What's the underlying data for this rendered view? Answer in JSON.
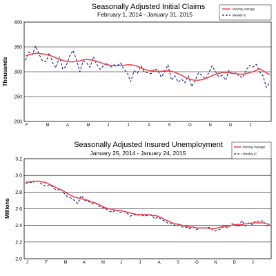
{
  "colors": {
    "moving_average": "#f2434b",
    "weekly": "#1a1a8c",
    "grid": "#000000",
    "background": "#ffffff"
  },
  "chart_data": [
    {
      "type": "line",
      "title": "Seasonally Adjusted Initial Claims",
      "subtitle": "February 1, 2014  -  January 31, 2015",
      "ylabel": "Thousands",
      "ylim": [
        200,
        400
      ],
      "yticks": [
        200,
        250,
        300,
        350,
        400
      ],
      "x_tick_labels": [
        "F",
        "M",
        "A",
        "M",
        "J",
        "J",
        "A",
        "S",
        "O",
        "N",
        "D",
        "J"
      ],
      "grid": "horizontal",
      "legend": "top-right",
      "legend_entries": [
        "Moving Average",
        "Weekly IC"
      ],
      "series": [
        {
          "name": "Moving Average",
          "values": [
            332,
            334,
            336,
            337,
            337,
            336,
            335,
            333,
            331,
            328,
            325,
            323,
            321,
            320,
            320,
            321,
            322,
            324,
            325,
            324,
            323,
            321,
            319,
            316,
            314,
            313,
            312,
            312,
            313,
            313,
            314,
            314,
            313,
            311,
            308,
            305,
            303,
            302,
            301,
            301,
            301,
            302,
            302,
            301,
            299,
            296,
            293,
            289,
            286,
            284,
            283,
            283,
            284,
            286,
            289,
            292,
            295,
            297,
            298,
            298,
            298,
            297,
            296,
            295,
            295,
            296,
            298,
            300,
            303,
            306,
            302,
            298,
            294
          ]
        },
        {
          "name": "Weekly IC",
          "values": [
            323,
            340,
            334,
            352,
            335,
            322,
            320,
            338,
            318,
            308,
            330,
            305,
            312,
            332,
            343,
            325,
            300,
            322,
            318,
            309,
            330,
            315,
            305,
            312,
            318,
            309,
            314,
            312,
            318,
            305,
            298,
            280,
            302,
            297,
            312,
            300,
            298,
            296,
            306,
            303,
            289,
            300,
            314,
            283,
            292,
            279,
            285,
            278,
            292,
            270,
            283,
            298,
            293,
            285,
            298,
            312,
            300,
            290,
            293,
            283,
            303,
            295,
            298,
            291,
            288,
            303,
            313,
            309,
            315,
            300,
            292,
            268,
            280
          ]
        }
      ]
    },
    {
      "type": "line",
      "title": "Seasonally Adjusted Insured Unemployment",
      "subtitle": "January 25, 2014  -  January 24, 2015",
      "ylabel": "Millions",
      "ylim": [
        2.0,
        3.2
      ],
      "yticks": [
        2.0,
        2.2,
        2.4,
        2.6,
        2.8,
        3.0,
        3.2
      ],
      "x_tick_labels": [
        "J",
        "F",
        "M",
        "A",
        "M",
        "J",
        "J",
        "A",
        "S",
        "O",
        "N",
        "D",
        "J"
      ],
      "grid": "horizontal",
      "legend": "top-right",
      "legend_entries": [
        "Moving Average",
        "Weekly IC"
      ],
      "series": [
        {
          "name": "Moving Average",
          "values": [
            2.92,
            2.92,
            2.93,
            2.93,
            2.93,
            2.92,
            2.91,
            2.89,
            2.87,
            2.85,
            2.83,
            2.81,
            2.78,
            2.76,
            2.74,
            2.73,
            2.72,
            2.71,
            2.7,
            2.68,
            2.67,
            2.65,
            2.63,
            2.61,
            2.6,
            2.59,
            2.58,
            2.58,
            2.57,
            2.56,
            2.55,
            2.54,
            2.53,
            2.53,
            2.53,
            2.53,
            2.52,
            2.52,
            2.51,
            2.49,
            2.47,
            2.45,
            2.43,
            2.42,
            2.41,
            2.4,
            2.39,
            2.38,
            2.38,
            2.37,
            2.37,
            2.37,
            2.37,
            2.36,
            2.36,
            2.37,
            2.38,
            2.39,
            2.39,
            2.4,
            2.41,
            2.41,
            2.41,
            2.42,
            2.42,
            2.43,
            2.43,
            2.43,
            2.43,
            2.42,
            2.41
          ]
        },
        {
          "name": "Weekly IC",
          "values": [
            2.9,
            2.92,
            2.91,
            2.94,
            2.92,
            2.88,
            2.87,
            2.89,
            2.85,
            2.82,
            2.84,
            2.79,
            2.74,
            2.73,
            2.7,
            2.66,
            2.76,
            2.7,
            2.69,
            2.66,
            2.67,
            2.63,
            2.62,
            2.6,
            2.57,
            2.56,
            2.59,
            2.55,
            2.57,
            2.55,
            2.51,
            2.53,
            2.52,
            2.53,
            2.51,
            2.52,
            2.53,
            2.48,
            2.5,
            2.47,
            2.45,
            2.42,
            2.42,
            2.4,
            2.41,
            2.38,
            2.38,
            2.36,
            2.38,
            2.35,
            2.37,
            2.36,
            2.38,
            2.37,
            2.33,
            2.34,
            2.36,
            2.39,
            2.37,
            2.42,
            2.41,
            2.38,
            2.46,
            2.39,
            2.43,
            2.41,
            2.46,
            2.44,
            2.46,
            2.4,
            2.39
          ]
        }
      ]
    }
  ]
}
